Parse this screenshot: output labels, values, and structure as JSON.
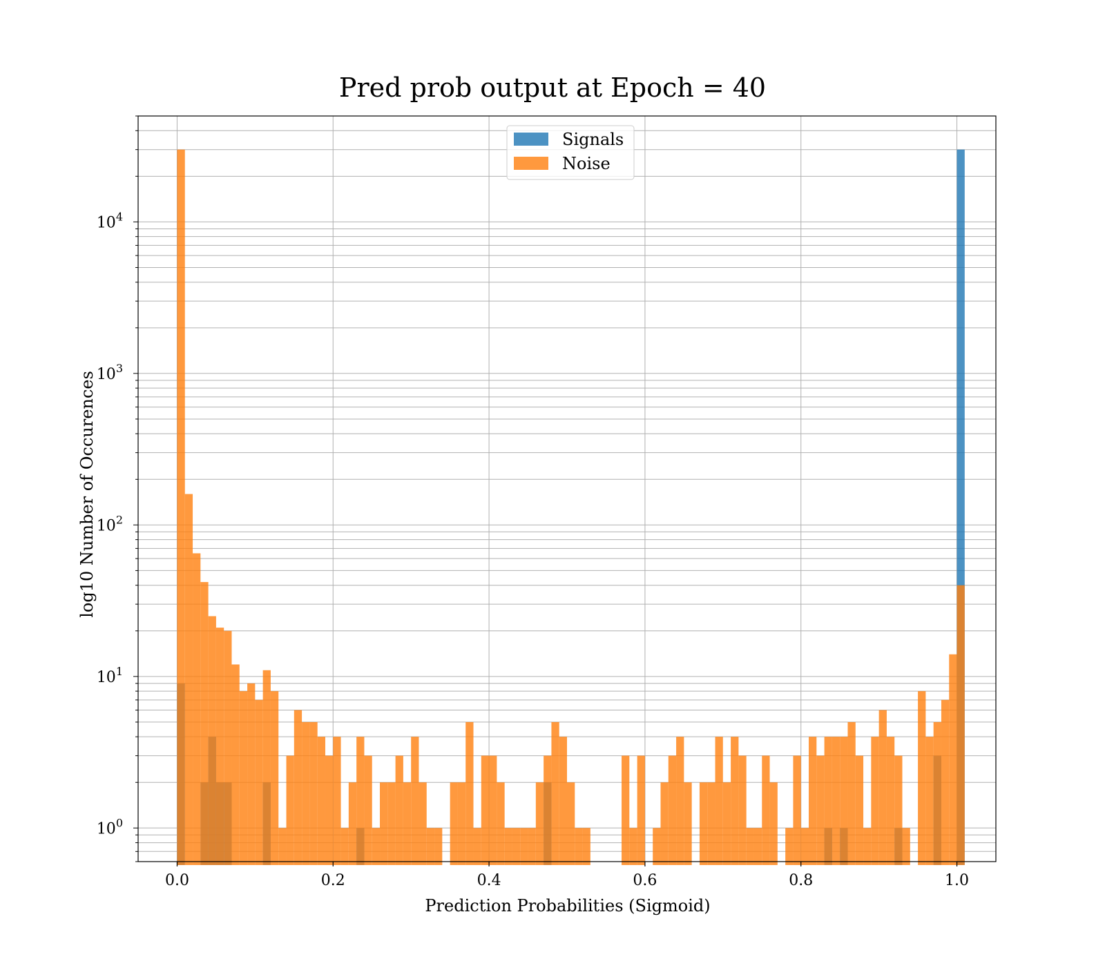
{
  "chart_data": {
    "type": "bar",
    "title": "Pred prob output at Epoch = 40",
    "xlabel": "Prediction Probabilities (Sigmoid)",
    "ylabel": "log10 Number of Occurences",
    "xlim": [
      -0.05,
      1.05
    ],
    "ylim": [
      0.6,
      50000
    ],
    "yscale": "log",
    "grid": true,
    "legend_position": "top-center",
    "x_ticks": [
      "0.0",
      "0.2",
      "0.4",
      "0.6",
      "0.8",
      "1.0"
    ],
    "y_ticks": [
      {
        "base": "10",
        "exp": "0"
      },
      {
        "base": "10",
        "exp": "1"
      },
      {
        "base": "10",
        "exp": "2"
      },
      {
        "base": "10",
        "exp": "3"
      },
      {
        "base": "10",
        "exp": "4"
      }
    ],
    "bin_edges_start": 0.0,
    "bin_width": 0.01,
    "series": [
      {
        "name": "Signals",
        "color": "#1f77b4",
        "counts": [
          9,
          0,
          0,
          2,
          4,
          2,
          2,
          0,
          0,
          0,
          0,
          2,
          0,
          0,
          0,
          0,
          0,
          0,
          0,
          0,
          0,
          0,
          0,
          1,
          0,
          0,
          0,
          0,
          0,
          0,
          0,
          0,
          0,
          0,
          0,
          0,
          0,
          0,
          0,
          0,
          0,
          0,
          0,
          0,
          0,
          0,
          0,
          2,
          0,
          0,
          0,
          0,
          0,
          0,
          0,
          0,
          0,
          0,
          0,
          0,
          0,
          0,
          0,
          0,
          0,
          0,
          0,
          0,
          0,
          0,
          0,
          0,
          0,
          0,
          0,
          0,
          0,
          0,
          0,
          0,
          0,
          0,
          0,
          1,
          0,
          1,
          0,
          0,
          0,
          0,
          0,
          0,
          1,
          0,
          0,
          0,
          0,
          3,
          0,
          0,
          30000
        ]
      },
      {
        "name": "Noise",
        "color": "#ff7f0e",
        "counts": [
          30000,
          160,
          65,
          42,
          25,
          21,
          20,
          12,
          8,
          9,
          7,
          11,
          8,
          1,
          3,
          6,
          5,
          5,
          4,
          3,
          4,
          1,
          2,
          4,
          3,
          1,
          2,
          2,
          3,
          2,
          4,
          2,
          1,
          1,
          0,
          2,
          2,
          5,
          1,
          3,
          3,
          2,
          1,
          1,
          1,
          1,
          2,
          3,
          5,
          4,
          2,
          1,
          1,
          0,
          0,
          0,
          0,
          3,
          1,
          3,
          0,
          1,
          2,
          3,
          4,
          2,
          0,
          2,
          2,
          4,
          2,
          4,
          3,
          1,
          1,
          3,
          2,
          0,
          1,
          3,
          1,
          4,
          3,
          4,
          4,
          4,
          5,
          3,
          1,
          4,
          6,
          4,
          3,
          1,
          0,
          8,
          4,
          5,
          7,
          14,
          40
        ]
      }
    ]
  }
}
